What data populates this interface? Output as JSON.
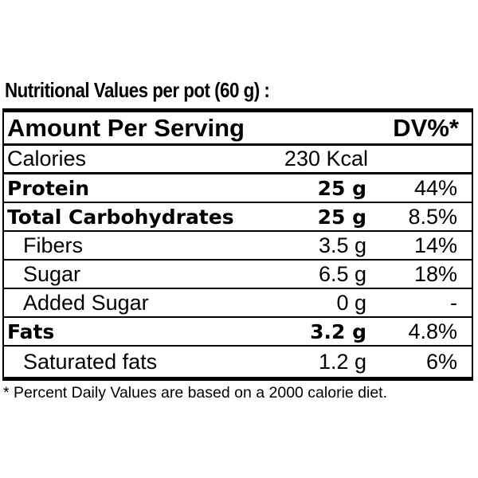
{
  "title": "Nutritional Values per pot (60 g) :",
  "header": {
    "amount_label": "Amount Per Serving",
    "dv_label": "DV%*"
  },
  "calories": {
    "label": "Calories",
    "value": "230 Kcal"
  },
  "rows": [
    {
      "label": "Protein",
      "amount": "25 g",
      "dv": "44%"
    },
    {
      "label": "Total Carbohydrates",
      "amount": "25 g",
      "dv": "8.5%"
    },
    {
      "label": "Fibers",
      "amount": "3.5 g",
      "dv": "14%"
    },
    {
      "label": "Sugar",
      "amount": "6.5 g",
      "dv": "18%"
    },
    {
      "label": "Added Sugar",
      "amount": "0 g",
      "dv": "-"
    },
    {
      "label": "Fats",
      "amount": "3.2 g",
      "dv": "4.8%"
    },
    {
      "label": "Saturated fats",
      "amount": "1.2 g",
      "dv": "6%"
    }
  ],
  "footnote": "* Percent Daily Values are based on a 2000 calorie diet."
}
